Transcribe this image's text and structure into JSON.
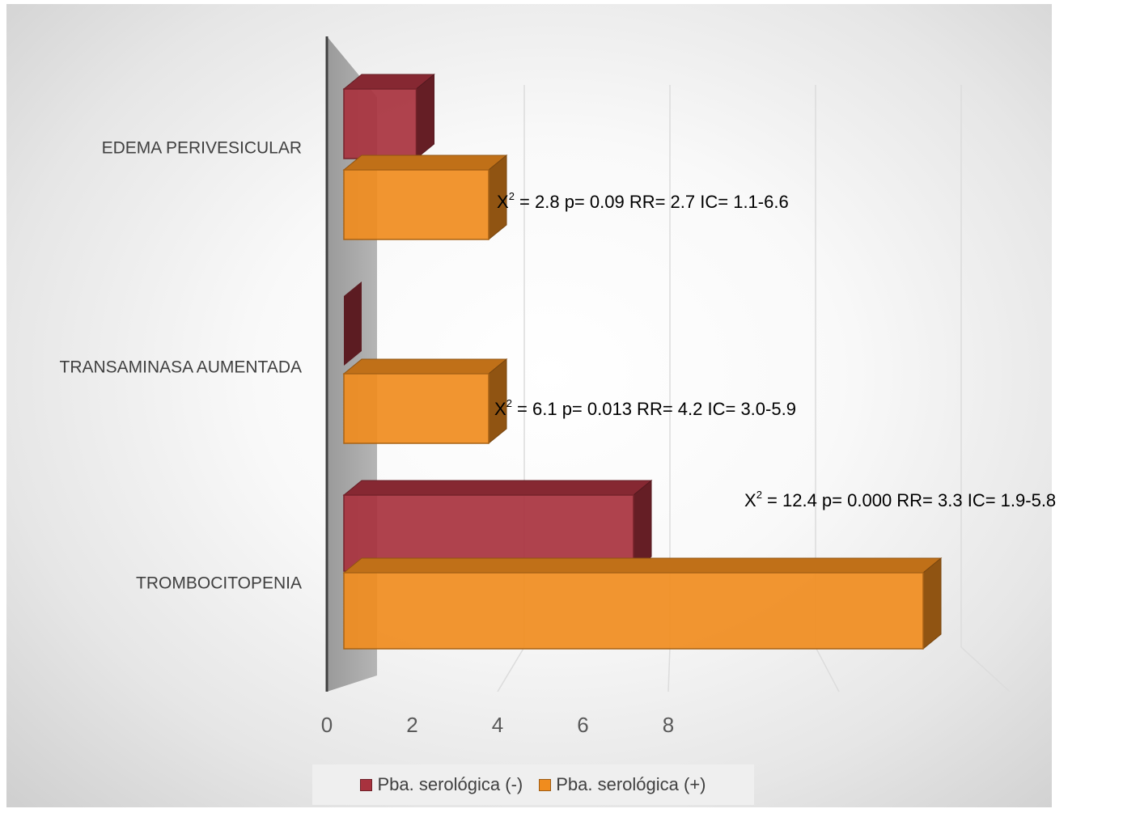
{
  "chart_data": {
    "type": "bar",
    "orientation": "horizontal",
    "categories": [
      "EDEMA PERIVESICULAR",
      "TRANSAMINASA AUMENTADA",
      "TROMBOCITOPENIA"
    ],
    "series": [
      {
        "name": "Pba.  serológica (-)",
        "values": [
          1,
          0,
          4
        ],
        "color": "#a8323e"
      },
      {
        "name": "Pba. serológica (+)",
        "values": [
          2,
          2,
          8
        ],
        "color": "#f08c1e"
      }
    ],
    "xlim": [
      0,
      8
    ],
    "xticks": [
      "0",
      "2",
      "4",
      "6",
      "8"
    ],
    "grid": "vertical",
    "legend_position": "bottom",
    "annotations": [
      {
        "text": "X",
        "sup": "2",
        "rest": " = 2.8     p= 0.09    RR= 2.7     IC= 1.1-6.6"
      },
      {
        "text": "X",
        "sup": "2",
        "rest": " = 6.1     p= 0.013    RR= 4.2    IC= 3.0-5.9"
      },
      {
        "text": "X",
        "sup": "2",
        "rest": " = 12.4     p= 0.000    RR= 3.3     IC= 1.9-5.8"
      }
    ]
  }
}
